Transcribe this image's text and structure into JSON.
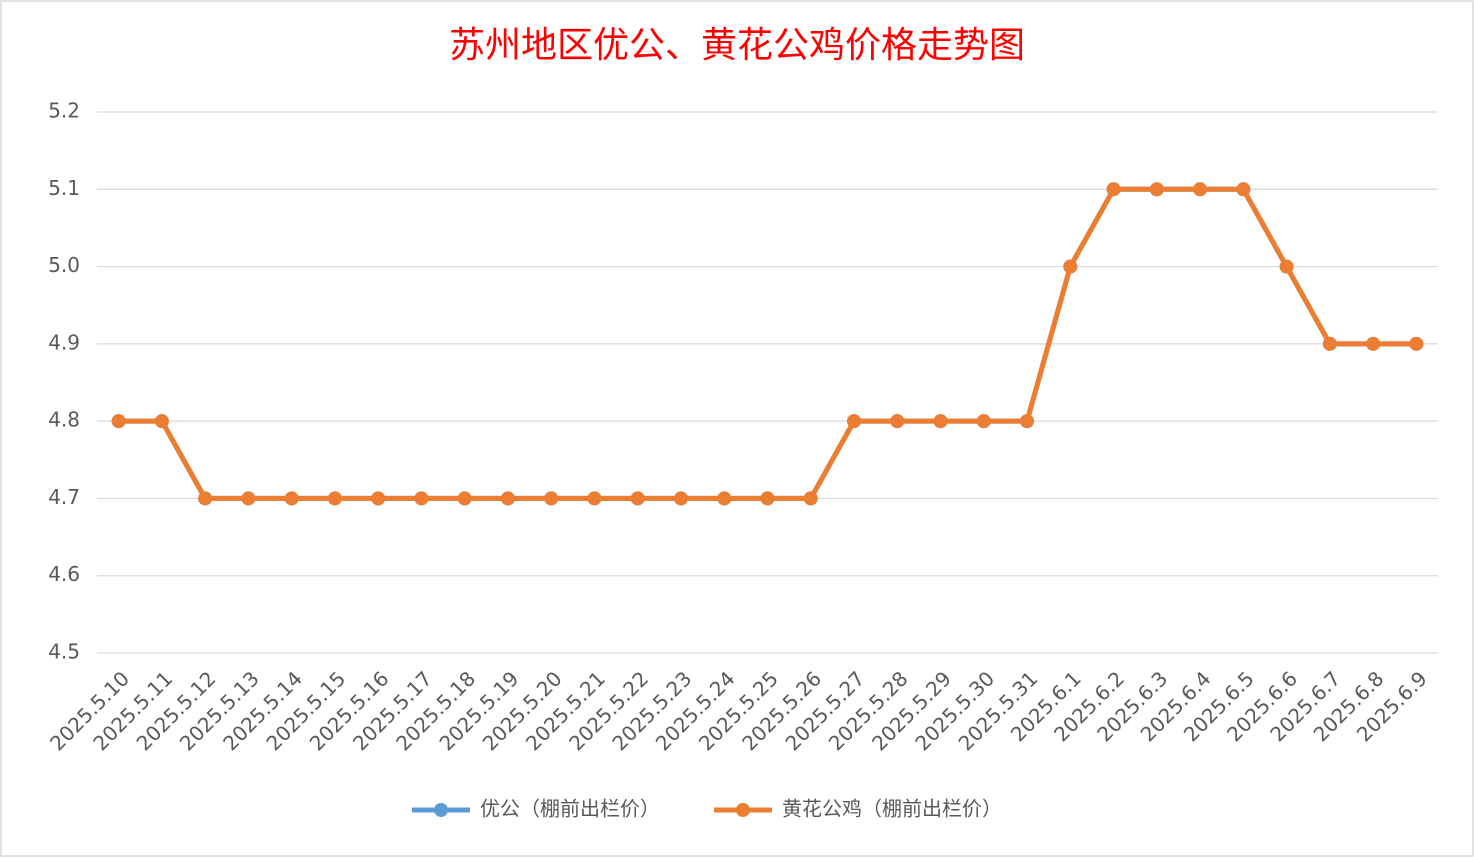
{
  "chart_data": {
    "type": "line",
    "title": "苏州地区优公、黄花公鸡价格走势图",
    "categories": [
      "2025.5.10",
      "2025.5.11",
      "2025.5.12",
      "2025.5.13",
      "2025.5.14",
      "2025.5.15",
      "2025.5.16",
      "2025.5.17",
      "2025.5.18",
      "2025.5.19",
      "2025.5.20",
      "2025.5.21",
      "2025.5.22",
      "2025.5.23",
      "2025.5.24",
      "2025.5.25",
      "2025.5.26",
      "2025.5.27",
      "2025.5.28",
      "2025.5.29",
      "2025.5.30",
      "2025.5.31",
      "2025.6.1",
      "2025.6.2",
      "2025.6.3",
      "2025.6.4",
      "2025.6.5",
      "2025.6.6",
      "2025.6.7",
      "2025.6.8",
      "2025.6.9"
    ],
    "series": [
      {
        "name": "优公（棚前出栏价）",
        "color": "#5b9bd5",
        "values": [
          4.8,
          4.8,
          4.7,
          4.7,
          4.7,
          4.7,
          4.7,
          4.7,
          4.7,
          4.7,
          4.7,
          4.7,
          4.7,
          4.7,
          4.7,
          4.7,
          4.7,
          4.8,
          4.8,
          4.8,
          4.8,
          4.8,
          5.0,
          5.1,
          5.1,
          5.1,
          5.1,
          5.0,
          4.9,
          4.9,
          4.9
        ]
      },
      {
        "name": "黄花公鸡（棚前出栏价）",
        "color": "#ed7d31",
        "values": [
          4.8,
          4.8,
          4.7,
          4.7,
          4.7,
          4.7,
          4.7,
          4.7,
          4.7,
          4.7,
          4.7,
          4.7,
          4.7,
          4.7,
          4.7,
          4.7,
          4.7,
          4.8,
          4.8,
          4.8,
          4.8,
          4.8,
          5.0,
          5.1,
          5.1,
          5.1,
          5.1,
          5.0,
          4.9,
          4.9,
          4.9
        ]
      }
    ],
    "ylim": [
      4.5,
      5.2
    ],
    "yticks": [
      4.5,
      4.6,
      4.7,
      4.8,
      4.9,
      {
        "value": 5,
        "label": "5.0"
      },
      5.1,
      5.2
    ],
    "grid": true,
    "legend": "bottom"
  }
}
